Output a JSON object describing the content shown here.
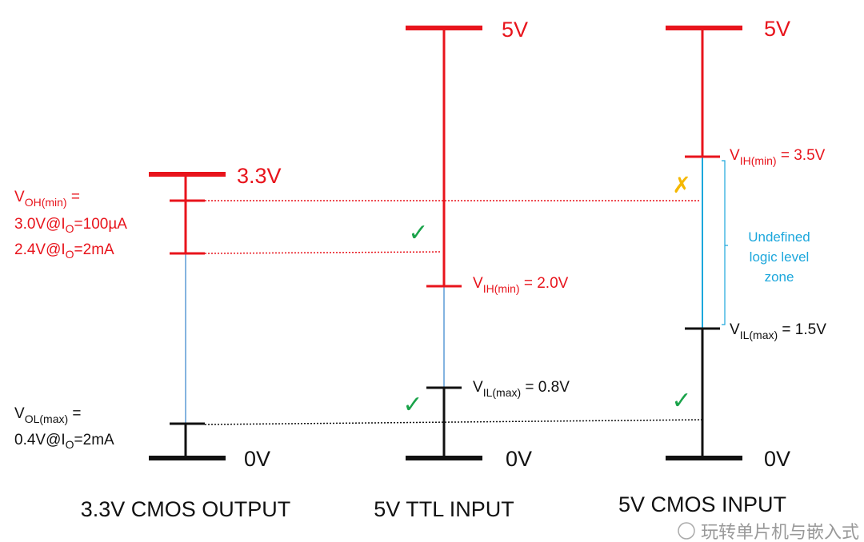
{
  "colors": {
    "high": "#e8141c",
    "low": "#000000",
    "transition": "#5b9bd5",
    "undefined_zone": "#1ca7dc",
    "ok": "#1aa34a",
    "fail": "#f5b800"
  },
  "columns": [
    {
      "title": "3.3V CMOS OUTPUT",
      "top_label": "3.3V",
      "bottom_label": "0V",
      "voh": {
        "v": "V",
        "sub": "OH(min)",
        "rest": " =",
        "line2a": "3.0V@I",
        "line2sub": "O",
        "line2b": "=100µA",
        "line3a": "2.4V@I",
        "line3sub": "O",
        "line3b": "=2mA"
      },
      "vol": {
        "v": "V",
        "sub": "OL(max)",
        "rest": " =",
        "line2a": "0.4V@I",
        "line2sub": "O",
        "line2b": "=2mA"
      }
    },
    {
      "title": "5V TTL INPUT",
      "top_label": "5V",
      "bottom_label": "0V",
      "vih": {
        "v": "V",
        "sub": "IH(min)",
        "rest": " = 2.0V"
      },
      "vil": {
        "v": "V",
        "sub": "IL(max)",
        "rest": " = 0.8V"
      }
    },
    {
      "title": "5V CMOS INPUT",
      "top_label": "5V",
      "bottom_label": "0V",
      "vih": {
        "v": "V",
        "sub": "IH(min)",
        "rest": " = 3.5V"
      },
      "vil": {
        "v": "V",
        "sub": "IL(max)",
        "rest": " = 1.5V"
      },
      "zone": [
        "Undefined",
        "logic level",
        "zone"
      ]
    }
  ],
  "marks": {
    "check": "✓",
    "cross": "✗"
  },
  "watermark": "玩转单片机与嵌入式"
}
